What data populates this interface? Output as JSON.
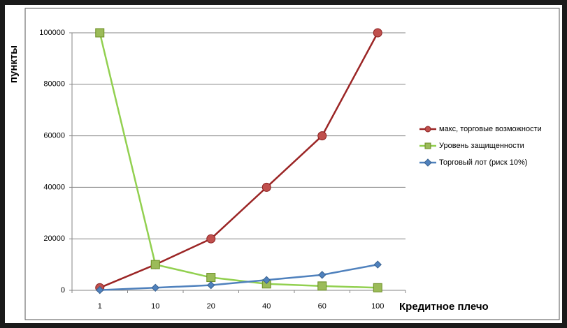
{
  "chart_data": {
    "type": "line",
    "y_label": "пункты",
    "x_label": "Кредитное плечо",
    "categories": [
      "1",
      "10",
      "20",
      "40",
      "60",
      "100"
    ],
    "series": [
      {
        "name": "макс, торговые возможности",
        "color": "#9b2525",
        "marker_color": "#c0504d",
        "marker": "circle",
        "values": [
          1000,
          10000,
          20000,
          40000,
          60000,
          100000
        ]
      },
      {
        "name": "Уровень защищенности",
        "color": "#92d050",
        "marker_color": "#9bbb59",
        "marker": "square",
        "values": [
          100000,
          10000,
          5000,
          2500,
          1667,
          1000
        ]
      },
      {
        "name": "Торговый лот (риск 10%)",
        "color": "#4f81bd",
        "marker_color": "#4f81bd",
        "marker": "diamond",
        "values": [
          100,
          1000,
          2000,
          4000,
          6000,
          10000
        ]
      }
    ],
    "ylim": [
      0,
      100000
    ],
    "yticks": [
      0,
      20000,
      40000,
      60000,
      80000,
      100000
    ],
    "grid": true,
    "legend": "right"
  }
}
